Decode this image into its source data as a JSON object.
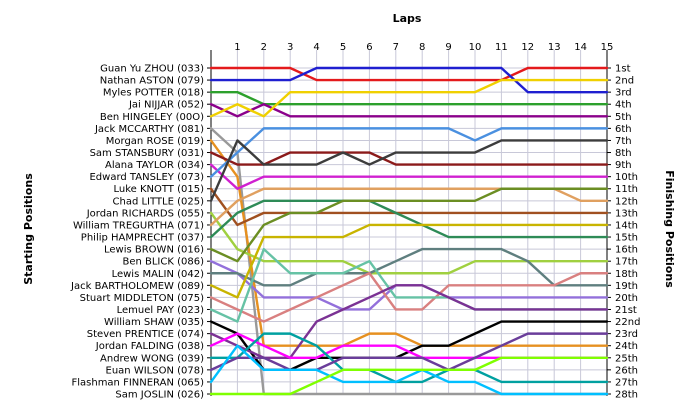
{
  "chart_data": {
    "type": "line",
    "title": "Laps",
    "ylabel_left": "Starting Positions",
    "ylabel_right": "Finishing Positions",
    "x": [
      1,
      2,
      3,
      4,
      5,
      6,
      7,
      8,
      9,
      10,
      11,
      12,
      13,
      14,
      15
    ],
    "xlim": [
      0,
      15
    ],
    "ylim": [
      1,
      28
    ],
    "y_reversed": true,
    "grid": true,
    "starting_labels": [
      "Guan Yu ZHOU (033)",
      "Nathan ASTON (079)",
      "Myles POTTER (018)",
      "Jai NIJJAR (052)",
      "Ben HINGELEY (00O)",
      "Jack MCCARTHY (081)",
      "Morgan ROSE (019)",
      "Sam STANSBURY (031)",
      "Alana TAYLOR (034)",
      "Edward TANSLEY (073)",
      "Luke KNOTT (015)",
      "Chad LITTLE (025)",
      "Jordan RICHARDS (055)",
      "William TREGURTHA (071)",
      "Philip HAMPRECHT (037)",
      "Lewis BROWN (016)",
      "Ben BLICK (086)",
      "Lewis MALIN (042)",
      "Jack BARTHOLOMEW (089)",
      "Stuart MIDDLETON (075)",
      "Lemuel PAY (023)",
      "William SHAW (035)",
      "Steven PRENTICE (074)",
      "Jordan FALDING (038)",
      "Andrew WONG (039)",
      "Euan WILSON (078)",
      "Flashman FINNERAN (065)",
      "Sam JOSLIN (026)"
    ],
    "finishing_labels": [
      "1st",
      "2nd",
      "3rd",
      "4th",
      "5th",
      "6th",
      "7th",
      "8th",
      "9th",
      "10th",
      "11th",
      "12th",
      "13th",
      "14th",
      "15th",
      "16th",
      "17th",
      "18th",
      "19th",
      "20th",
      "21st",
      "22nd",
      "23rd",
      "24th",
      "25th",
      "26th",
      "27th",
      "28th"
    ],
    "series": [
      {
        "color": "#e41a1c",
        "positions": [
          1,
          1,
          1,
          1,
          2,
          2,
          2,
          2,
          2,
          2,
          2,
          2,
          1,
          1,
          1,
          1
        ]
      },
      {
        "color": "#1f1fd0",
        "positions": [
          2,
          2,
          2,
          2,
          1,
          1,
          1,
          1,
          1,
          1,
          1,
          1,
          3,
          3,
          3,
          3
        ]
      },
      {
        "color": "#2ca02c",
        "positions": [
          3,
          3,
          4,
          4,
          4,
          4,
          4,
          4,
          4,
          4,
          4,
          4,
          4,
          4,
          4,
          4
        ]
      },
      {
        "color": "#8b008b",
        "positions": [
          4,
          5,
          4,
          5,
          5,
          5,
          5,
          5,
          5,
          5,
          5,
          5,
          5,
          5,
          5,
          5
        ]
      },
      {
        "color": "#f0d000",
        "positions": [
          5,
          4,
          5,
          3,
          3,
          3,
          3,
          3,
          3,
          3,
          3,
          2,
          2,
          2,
          2,
          2
        ]
      },
      {
        "color": "#999999",
        "positions": [
          6,
          8,
          28,
          28,
          28,
          28,
          28,
          28,
          28,
          28,
          28,
          28,
          28,
          28,
          28,
          28
        ]
      },
      {
        "color": "#e69020",
        "positions": [
          7,
          10,
          24,
          24,
          24,
          24,
          23,
          23,
          24,
          24,
          24,
          24,
          24,
          24,
          24,
          24
        ]
      },
      {
        "color": "#8b1a1a",
        "positions": [
          8,
          9,
          9,
          8,
          8,
          8,
          8,
          9,
          9,
          9,
          9,
          9,
          9,
          9,
          9,
          9
        ]
      },
      {
        "color": "#d020d0",
        "positions": [
          9,
          11,
          10,
          10,
          10,
          10,
          10,
          10,
          10,
          10,
          10,
          10,
          10,
          10,
          10,
          10
        ]
      },
      {
        "color": "#4a90e0",
        "positions": [
          10,
          8,
          6,
          6,
          6,
          6,
          6,
          6,
          6,
          6,
          7,
          6,
          6,
          6,
          6,
          6
        ]
      },
      {
        "color": "#a05020",
        "positions": [
          11,
          14,
          13,
          13,
          13,
          13,
          13,
          13,
          13,
          13,
          13,
          13,
          13,
          13,
          13,
          13
        ]
      },
      {
        "color": "#3c3c3c",
        "positions": [
          12,
          7,
          9,
          9,
          9,
          8,
          9,
          8,
          8,
          8,
          8,
          7,
          7,
          7,
          7,
          7
        ]
      },
      {
        "color": "#a0d040",
        "positions": [
          13,
          16,
          17,
          17,
          17,
          17,
          18,
          18,
          18,
          18,
          17,
          17,
          17,
          17,
          17,
          17
        ]
      },
      {
        "color": "#e0a060",
        "positions": [
          14,
          12,
          11,
          11,
          11,
          11,
          11,
          11,
          11,
          11,
          11,
          11,
          11,
          11,
          12,
          12
        ]
      },
      {
        "color": "#2e8b57",
        "positions": [
          15,
          13,
          12,
          12,
          12,
          12,
          12,
          13,
          14,
          15,
          15,
          15,
          15,
          15,
          15,
          15
        ]
      },
      {
        "color": "#6b8e23",
        "positions": [
          16,
          17,
          14,
          13,
          13,
          12,
          12,
          12,
          12,
          12,
          12,
          11,
          11,
          11,
          11,
          11
        ]
      },
      {
        "color": "#9370db",
        "positions": [
          17,
          18,
          20,
          20,
          20,
          21,
          21,
          19,
          19,
          20,
          20,
          20,
          20,
          20,
          20,
          20
        ]
      },
      {
        "color": "#5f7f7f",
        "positions": [
          18,
          18,
          19,
          19,
          18,
          18,
          18,
          17,
          16,
          16,
          16,
          16,
          17,
          19,
          19,
          19
        ]
      },
      {
        "color": "#c8b400",
        "positions": [
          19,
          20,
          15,
          15,
          15,
          15,
          14,
          14,
          14,
          14,
          14,
          14,
          14,
          14,
          14,
          14
        ]
      },
      {
        "color": "#d98080",
        "positions": [
          20,
          21,
          22,
          21,
          20,
          19,
          18,
          21,
          21,
          19,
          19,
          19,
          19,
          19,
          18,
          18
        ]
      },
      {
        "color": "#66c2a5",
        "positions": [
          21,
          22,
          16,
          18,
          18,
          18,
          17,
          20,
          20,
          20,
          21,
          21,
          21,
          21,
          21,
          21
        ]
      },
      {
        "color": "#000000",
        "positions": [
          22,
          23,
          26,
          26,
          25,
          25,
          25,
          25,
          24,
          24,
          23,
          22,
          22,
          22,
          22,
          22
        ]
      },
      {
        "color": "#7b3294",
        "positions": [
          23,
          24,
          25,
          25,
          22,
          21,
          20,
          19,
          19,
          20,
          21,
          21,
          21,
          21,
          21,
          21
        ]
      },
      {
        "color": "#ff00ff",
        "positions": [
          24,
          23,
          24,
          25,
          25,
          24,
          24,
          24,
          25,
          25,
          25,
          25,
          25,
          25,
          25,
          25
        ]
      },
      {
        "color": "#00a0a0",
        "positions": [
          25,
          25,
          23,
          23,
          24,
          26,
          26,
          27,
          27,
          26,
          26,
          27,
          27,
          27,
          27,
          27
        ]
      },
      {
        "color": "#6a3d9a",
        "positions": [
          26,
          25,
          25,
          26,
          26,
          25,
          25,
          25,
          25,
          26,
          25,
          24,
          23,
          23,
          23,
          23
        ]
      },
      {
        "color": "#00bfff",
        "positions": [
          27,
          24,
          26,
          26,
          26,
          27,
          27,
          27,
          26,
          27,
          27,
          28,
          28,
          28,
          28,
          28
        ]
      },
      {
        "color": "#7fff00",
        "positions": [
          28,
          28,
          28,
          28,
          27,
          26,
          26,
          26,
          26,
          26,
          26,
          25,
          25,
          25,
          25,
          25
        ]
      }
    ]
  }
}
